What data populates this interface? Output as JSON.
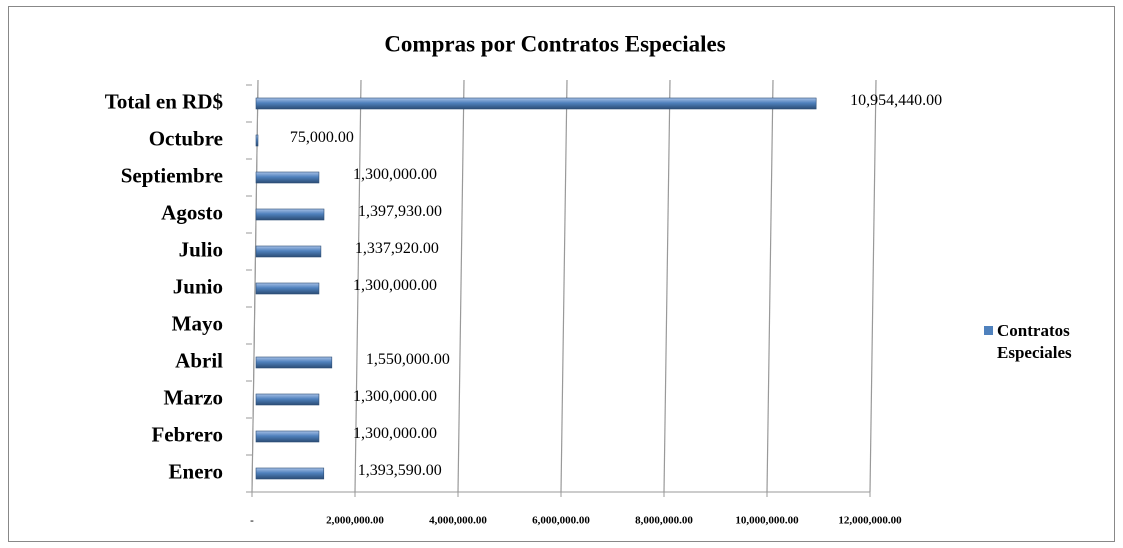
{
  "chart_data": {
    "type": "bar",
    "orientation": "horizontal",
    "title": "Compras  por Contratos Especiales",
    "categories": [
      "Enero",
      "Febrero",
      "Marzo",
      "Abril",
      "Mayo",
      "Junio",
      "Julio",
      "Agosto",
      "Septiembre",
      "Octubre",
      "Total en RD$"
    ],
    "series": [
      {
        "name": "Contratos Especiales",
        "color": "#4f81bd",
        "values": [
          1393590,
          1300000,
          1300000,
          1550000,
          null,
          1300000,
          1337920,
          1397930,
          1300000,
          75000,
          10954440
        ],
        "value_labels": [
          "1,393,590.00",
          "1,300,000.00",
          "1,300,000.00",
          "1,550,000.00",
          null,
          "1,300,000.00",
          "1,337,920.00",
          "1,397,930.00",
          "1,300,000.00",
          "75,000.00",
          "10,954,440.00"
        ]
      }
    ],
    "xlim": [
      0,
      12000000
    ],
    "xticks": [
      {
        "value": 0,
        "label": "-"
      },
      {
        "value": 2000000,
        "label": "2,000,000.00"
      },
      {
        "value": 4000000,
        "label": "4,000,000.00"
      },
      {
        "value": 6000000,
        "label": "6,000,000.00"
      },
      {
        "value": 8000000,
        "label": "8,000,000.00"
      },
      {
        "value": 10000000,
        "label": "10,000,000.00"
      },
      {
        "value": 12000000,
        "label": "12,000,000.00"
      }
    ],
    "grid": true,
    "legend": "right"
  }
}
